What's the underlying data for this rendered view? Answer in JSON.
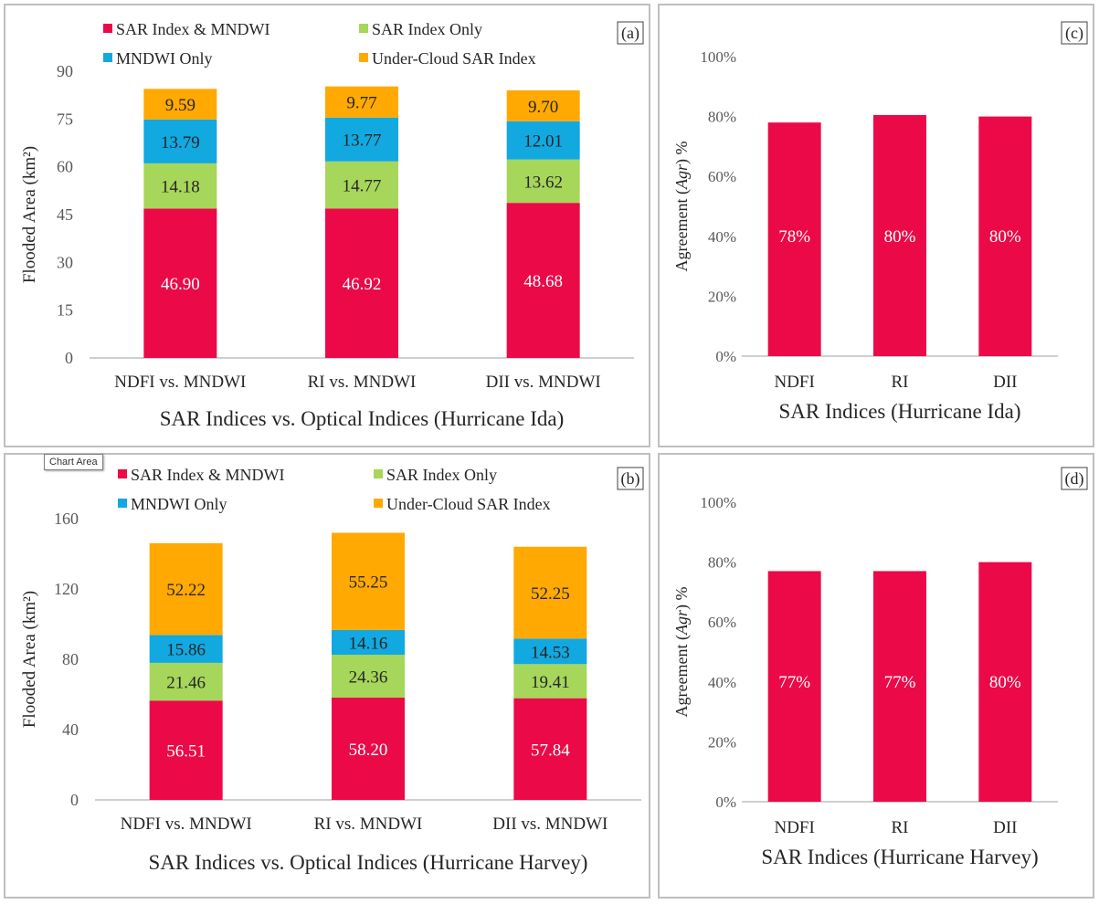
{
  "colors": {
    "sar_and_mndwi": "#EB0A47",
    "sar_only": "#A6D65A",
    "mndwi_only": "#12A8E0",
    "under_cloud": "#FFA902",
    "agreement": "#EB0A47",
    "axis": "#bfbfbf",
    "text": "#262626"
  },
  "tooltip": "Chart Area",
  "chart_data": [
    {
      "panel": "a",
      "tag": "(a)",
      "type": "bar",
      "stacked": true,
      "xlabel": "SAR Indices vs. Optical Indices (Hurricane Ida)",
      "ylabel": "Flooded Area (km²)",
      "ylim": [
        0,
        90
      ],
      "yticks": [
        0,
        15,
        30,
        45,
        60,
        75,
        90
      ],
      "legend_position": "top",
      "categories": [
        "NDFI vs. MNDWI",
        "RI vs. MNDWI",
        "DII vs. MNDWI"
      ],
      "series": [
        {
          "name": "SAR Index & MNDWI",
          "values": [
            46.9,
            46.92,
            48.68
          ],
          "labels": [
            "46.90",
            "46.92",
            "48.68"
          ]
        },
        {
          "name": "SAR Index Only",
          "values": [
            14.18,
            14.77,
            13.62
          ],
          "labels": [
            "14.18",
            "14.77",
            "13.62"
          ]
        },
        {
          "name": "MNDWI Only",
          "values": [
            13.79,
            13.77,
            12.01
          ],
          "labels": [
            "13.79",
            "13.77",
            "12.01"
          ]
        },
        {
          "name": "Under-Cloud SAR Index",
          "values": [
            9.59,
            9.77,
            9.7
          ],
          "labels": [
            "9.59",
            "9.77",
            "9.70"
          ]
        }
      ]
    },
    {
      "panel": "b",
      "tag": "(b)",
      "type": "bar",
      "stacked": true,
      "xlabel": "SAR Indices vs. Optical Indices (Hurricane Harvey)",
      "ylabel": "Flooded Area (km²)",
      "ylim": [
        0,
        160
      ],
      "yticks": [
        0,
        40,
        80,
        120,
        160
      ],
      "legend_position": "top",
      "categories": [
        "NDFI vs. MNDWI",
        "RI vs. MNDWI",
        "DII vs. MNDWI"
      ],
      "series": [
        {
          "name": "SAR Index & MNDWI",
          "values": [
            56.51,
            58.2,
            57.84
          ],
          "labels": [
            "56.51",
            "58.20",
            "57.84"
          ]
        },
        {
          "name": "SAR Index Only",
          "values": [
            21.46,
            24.36,
            19.41
          ],
          "labels": [
            "21.46",
            "24.36",
            "19.41"
          ]
        },
        {
          "name": "MNDWI Only",
          "values": [
            15.86,
            14.16,
            14.53
          ],
          "labels": [
            "15.86",
            "14.16",
            "14.53"
          ]
        },
        {
          "name": "Under-Cloud SAR Index",
          "values": [
            52.22,
            55.25,
            52.25
          ],
          "labels": [
            "52.22",
            "55.25",
            "52.25"
          ]
        }
      ]
    },
    {
      "panel": "c",
      "tag": "(c)",
      "type": "bar",
      "xlabel": "SAR Indices (Hurricane Ida)",
      "ylabel": "Agreement (Agr) %",
      "ylabel_parts": [
        "Agreement (",
        "Agr",
        ") %"
      ],
      "ylim": [
        0,
        100
      ],
      "yticks": [
        0,
        20,
        40,
        60,
        80,
        100
      ],
      "ytick_labels": [
        "0%",
        "20%",
        "40%",
        "60%",
        "80%",
        "100%"
      ],
      "categories": [
        "NDFI",
        "RI",
        "DII"
      ],
      "values": [
        78,
        80.5,
        80
      ],
      "labels": [
        "78%",
        "80%",
        "80%"
      ]
    },
    {
      "panel": "d",
      "tag": "(d)",
      "type": "bar",
      "xlabel": "SAR Indices (Hurricane Harvey)",
      "ylabel": "Agreement (Agr) %",
      "ylabel_parts": [
        "Agreement (",
        "Agr",
        ") %"
      ],
      "ylim": [
        0,
        100
      ],
      "yticks": [
        0,
        20,
        40,
        60,
        80,
        100
      ],
      "ytick_labels": [
        "0%",
        "20%",
        "40%",
        "60%",
        "80%",
        "100%"
      ],
      "categories": [
        "NDFI",
        "RI",
        "DII"
      ],
      "values": [
        77,
        77,
        80
      ],
      "labels": [
        "77%",
        "77%",
        "80%"
      ]
    }
  ]
}
